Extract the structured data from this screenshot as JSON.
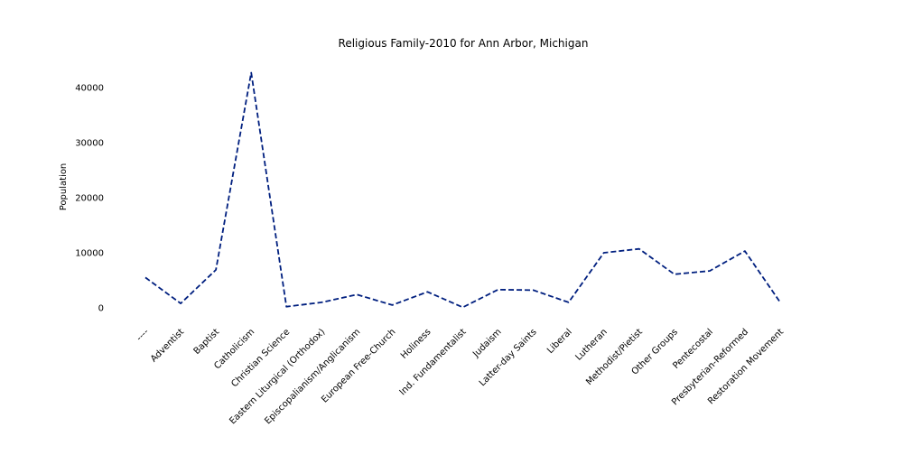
{
  "chart_data": {
    "type": "line",
    "title": "Religious Family-2010 for Ann Arbor, Michigan",
    "xlabel": "",
    "ylabel": "Population",
    "categories": [
      "----",
      "Adventist",
      "Baptist",
      "Catholicism",
      "Christian Science",
      "Eastern Liturgical (Orthodox)",
      "Episcopalianism/Anglicanism",
      "European Free-Church",
      "Holiness",
      "Ind. Fundamentalist",
      "Judaism",
      "Latter-day Saints",
      "Liberal",
      "Lutheran",
      "Methodist/Pietist",
      "Other Groups",
      "Pentecostal",
      "Presbyterian-Reformed",
      "Restoration Movement"
    ],
    "series": [
      {
        "values": [
          5400,
          700,
          6800,
          42600,
          100,
          900,
          2300,
          400,
          2800,
          0,
          3200,
          3100,
          900,
          9900,
          10600,
          6000,
          6600,
          10200,
          900
        ]
      }
    ],
    "ylim": [
      -1500,
      44000
    ],
    "yticks": [
      0,
      10000,
      20000,
      30000,
      40000
    ],
    "grid": false,
    "legend": "none",
    "line_style": "dashed",
    "color": "#001f7f"
  }
}
